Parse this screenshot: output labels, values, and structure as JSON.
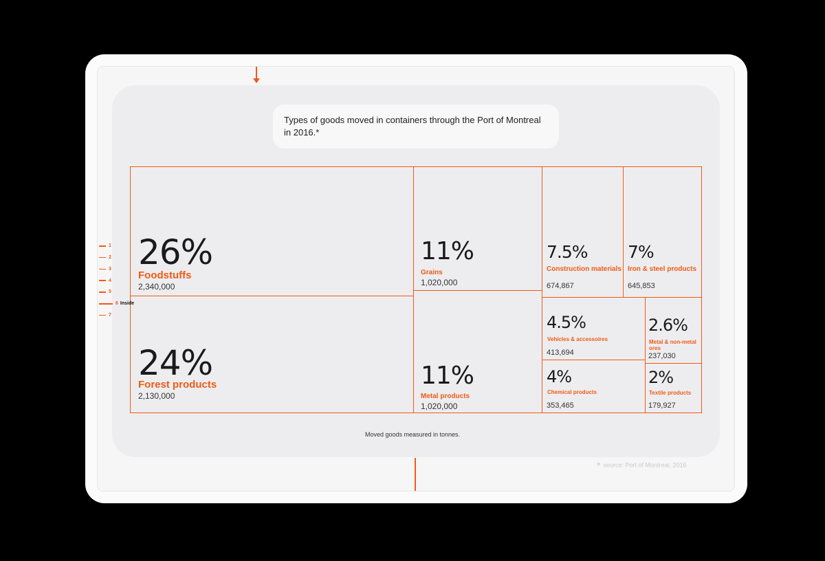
{
  "title": "Types of goods moved in containers through the Port of Montreal in 2016.*",
  "footnote": "Moved goods measured in tonnes.",
  "source": "source: Port of Montreal, 2016",
  "source_marker": "*",
  "ruler": {
    "ticks": [
      "1",
      "2",
      "3",
      "4",
      "5",
      "6",
      "7"
    ],
    "active_tick": "6",
    "active_label": "Inside"
  },
  "colors": {
    "accent": "#f05a16",
    "panel": "#ededef",
    "text": "#1a1a1a"
  },
  "chart_data": {
    "type": "treemap",
    "title": "Types of goods moved in containers through the Port of Montreal in 2016.*",
    "unit": "tonnes",
    "items": [
      {
        "pct": "26%",
        "category": "Foodstuffs",
        "value": "2,340,000"
      },
      {
        "pct": "24%",
        "category": "Forest products",
        "value": "2,130,000"
      },
      {
        "pct": "11%",
        "category": "Grains",
        "value": "1,020,000"
      },
      {
        "pct": "11%",
        "category": "Metal products",
        "value": "1,020,000"
      },
      {
        "pct": "7.5%",
        "category": "Construction materials",
        "value": "674,867"
      },
      {
        "pct": "7%",
        "category": "Iron & steel products",
        "value": "645,853"
      },
      {
        "pct": "4.5%",
        "category": "Vehicles & accessoires",
        "value": "413,694"
      },
      {
        "pct": "2.6%",
        "category": "Metal & non-metal ores",
        "value": "237,030"
      },
      {
        "pct": "4%",
        "category": "Chemical products",
        "value": "353,465"
      },
      {
        "pct": "2%",
        "category": "Textile products",
        "value": "179,927"
      }
    ]
  }
}
